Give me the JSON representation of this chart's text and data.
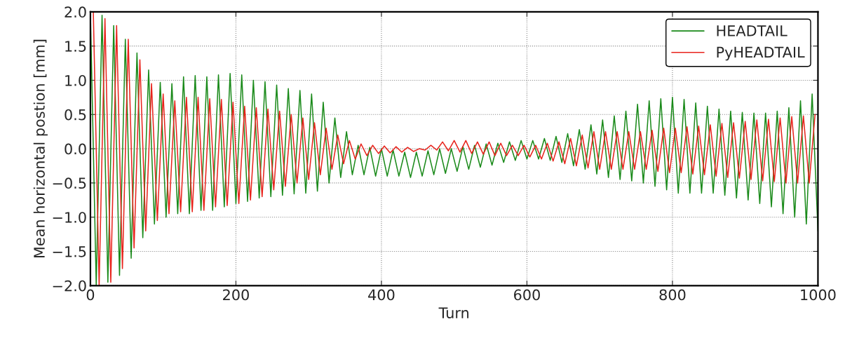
{
  "chart_data": {
    "type": "line",
    "xlabel": "Turn",
    "ylabel": "Mean horizontal postion [mm]",
    "xlim": [
      0,
      1000
    ],
    "xticks": [
      0,
      200,
      400,
      600,
      800,
      1000
    ],
    "ylim": [
      -2.0,
      2.0
    ],
    "yticks": [
      {
        "value": -2.0,
        "label": "−2.0"
      },
      {
        "value": -1.5,
        "label": "−1.5"
      },
      {
        "value": -1.0,
        "label": "−1.0"
      },
      {
        "value": -0.5,
        "label": "−0.5"
      },
      {
        "value": 0.0,
        "label": "0.0"
      },
      {
        "value": 0.5,
        "label": "0.5"
      },
      {
        "value": 1.0,
        "label": "1.0"
      },
      {
        "value": 1.5,
        "label": "1.5"
      },
      {
        "value": 2.0,
        "label": "2.0"
      }
    ],
    "grid": true,
    "legend": "top right",
    "line_style": "solid",
    "marker": "none",
    "series": [
      {
        "name": "HEADTAIL",
        "color": "#1a8a1a",
        "x": [
          0,
          8,
          16,
          24,
          32,
          40,
          48,
          56,
          64,
          72,
          80,
          88,
          96,
          104,
          112,
          120,
          128,
          136,
          144,
          152,
          160,
          168,
          176,
          184,
          192,
          200,
          208,
          216,
          224,
          232,
          240,
          248,
          256,
          264,
          272,
          280,
          288,
          296,
          304,
          312,
          320,
          328,
          336,
          344,
          352,
          360,
          368,
          376,
          384,
          392,
          400,
          408,
          416,
          424,
          432,
          440,
          448,
          456,
          464,
          472,
          480,
          488,
          496,
          504,
          512,
          520,
          528,
          536,
          544,
          552,
          560,
          568,
          576,
          584,
          592,
          600,
          608,
          616,
          624,
          632,
          640,
          648,
          656,
          664,
          672,
          680,
          688,
          696,
          704,
          712,
          720,
          728,
          736,
          744,
          752,
          760,
          768,
          776,
          784,
          792,
          800,
          808,
          816,
          824,
          832,
          840,
          848,
          856,
          864,
          872,
          880,
          888,
          896,
          904,
          912,
          920,
          928,
          936,
          944,
          952,
          960,
          968,
          976,
          984,
          992,
          1000
        ],
        "values": [
          2.0,
          -2.0,
          1.95,
          -1.95,
          1.8,
          -1.85,
          1.6,
          -1.6,
          1.4,
          -1.3,
          1.15,
          -1.1,
          0.97,
          -1.0,
          0.95,
          -0.95,
          1.05,
          -0.95,
          1.07,
          -0.9,
          1.05,
          -0.9,
          1.08,
          -0.85,
          1.1,
          -0.8,
          1.08,
          -0.77,
          1.0,
          -0.72,
          0.98,
          -0.7,
          0.93,
          -0.68,
          0.88,
          -0.66,
          0.85,
          -0.65,
          0.8,
          -0.62,
          0.68,
          -0.5,
          0.45,
          -0.42,
          0.25,
          -0.38,
          0.05,
          -0.38,
          0.02,
          -0.4,
          0.0,
          -0.4,
          -0.02,
          -0.4,
          -0.05,
          -0.42,
          -0.05,
          -0.4,
          -0.03,
          -0.38,
          0.0,
          -0.36,
          0.0,
          -0.33,
          0.03,
          -0.3,
          0.05,
          -0.27,
          0.07,
          -0.24,
          0.08,
          -0.2,
          0.1,
          -0.17,
          0.12,
          -0.15,
          0.12,
          -0.15,
          0.15,
          -0.17,
          0.18,
          -0.2,
          0.22,
          -0.25,
          0.28,
          -0.3,
          0.35,
          -0.37,
          0.42,
          -0.42,
          0.48,
          -0.45,
          0.55,
          -0.47,
          0.65,
          -0.5,
          0.7,
          -0.55,
          0.73,
          -0.6,
          0.75,
          -0.65,
          0.72,
          -0.65,
          0.67,
          -0.65,
          0.62,
          -0.65,
          0.58,
          -0.68,
          0.55,
          -0.72,
          0.53,
          -0.75,
          0.52,
          -0.8,
          0.52,
          -0.85,
          0.55,
          -0.95,
          0.6,
          -1.0,
          0.7,
          -1.1,
          0.8,
          -1.2
        ]
      },
      {
        "name": "PyHEADTAIL",
        "color": "#e8231c",
        "x": [
          4,
          12,
          20,
          28,
          36,
          44,
          52,
          60,
          68,
          76,
          84,
          92,
          100,
          108,
          116,
          124,
          132,
          140,
          148,
          156,
          164,
          172,
          180,
          188,
          196,
          204,
          212,
          220,
          228,
          236,
          244,
          252,
          260,
          268,
          276,
          284,
          292,
          300,
          308,
          316,
          324,
          332,
          340,
          348,
          356,
          364,
          372,
          380,
          388,
          396,
          404,
          412,
          420,
          428,
          436,
          444,
          452,
          460,
          468,
          476,
          484,
          492,
          500,
          508,
          516,
          524,
          532,
          540,
          548,
          556,
          564,
          572,
          580,
          588,
          596,
          604,
          612,
          620,
          628,
          636,
          644,
          652,
          660,
          668,
          676,
          684,
          692,
          700,
          708,
          716,
          724,
          732,
          740,
          748,
          756,
          764,
          772,
          780,
          788,
          796,
          804,
          812,
          820,
          828,
          836,
          844,
          852,
          860,
          868,
          876,
          884,
          892,
          900,
          908,
          916,
          924,
          932,
          940,
          948,
          956,
          964,
          972,
          980,
          988,
          996
        ],
        "values": [
          2.0,
          -2.0,
          1.9,
          -1.95,
          1.8,
          -1.75,
          1.6,
          -1.45,
          1.3,
          -1.2,
          0.95,
          -1.05,
          0.8,
          -0.95,
          0.7,
          -0.92,
          0.75,
          -0.92,
          0.75,
          -0.9,
          0.73,
          -0.85,
          0.72,
          -0.83,
          0.68,
          -0.8,
          0.62,
          -0.75,
          0.6,
          -0.7,
          0.58,
          -0.6,
          0.55,
          -0.55,
          0.5,
          -0.5,
          0.45,
          -0.45,
          0.38,
          -0.38,
          0.3,
          -0.3,
          0.2,
          -0.22,
          0.12,
          -0.15,
          0.07,
          -0.1,
          0.05,
          -0.07,
          0.04,
          -0.06,
          0.03,
          -0.05,
          0.02,
          -0.04,
          0.0,
          -0.02,
          0.05,
          -0.02,
          0.1,
          -0.03,
          0.12,
          -0.05,
          0.12,
          -0.07,
          0.1,
          -0.08,
          0.1,
          -0.1,
          0.08,
          -0.1,
          0.05,
          -0.1,
          0.05,
          -0.12,
          0.05,
          -0.15,
          0.08,
          -0.18,
          0.1,
          -0.22,
          0.15,
          -0.25,
          0.2,
          -0.28,
          0.25,
          -0.3,
          0.25,
          -0.3,
          0.25,
          -0.3,
          0.25,
          -0.3,
          0.25,
          -0.3,
          0.27,
          -0.33,
          0.3,
          -0.35,
          0.3,
          -0.35,
          0.32,
          -0.37,
          0.33,
          -0.38,
          0.35,
          -0.4,
          0.37,
          -0.42,
          0.38,
          -0.43,
          0.4,
          -0.45,
          0.42,
          -0.47,
          0.43,
          -0.48,
          0.45,
          -0.5,
          0.47,
          -0.5,
          0.48,
          -0.5,
          0.5
        ]
      }
    ]
  }
}
